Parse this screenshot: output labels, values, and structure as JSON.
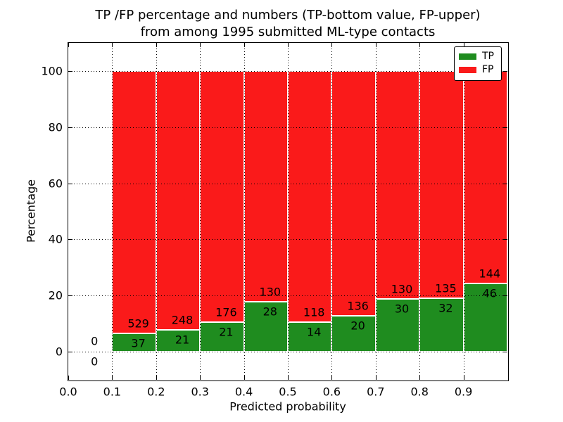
{
  "figure": {
    "title_line1": "TP /FP percentage and numbers (TP-bottom value, FP-upper)",
    "title_line2": "from among 1995 submitted ML-type contacts"
  },
  "axes": {
    "x_label": "Predicted probability",
    "y_label": "Percentage",
    "x_tick_values": [
      0.0,
      0.1,
      0.2,
      0.3,
      0.4,
      0.5,
      0.6,
      0.7,
      0.8,
      0.9
    ],
    "x_tick_labels": [
      "0.0",
      "0.1",
      "0.2",
      "0.3",
      "0.4",
      "0.5",
      "0.6",
      "0.7",
      "0.8",
      "0.9"
    ],
    "y_tick_values": [
      0,
      20,
      40,
      60,
      80,
      100
    ],
    "y_tick_labels": [
      "0",
      "20",
      "40",
      "60",
      "80",
      "100"
    ],
    "xlim": [
      0.0,
      1.0
    ],
    "ylim": [
      -10,
      110
    ],
    "grid": "dotted, both axes, drawn over bars"
  },
  "legend": {
    "position": "upper right",
    "items": [
      {
        "label": "TP",
        "color": "#1f8c1f"
      },
      {
        "label": "FP",
        "color": "#fa1a1a"
      }
    ]
  },
  "chart_data": {
    "type": "bar",
    "stacked": true,
    "normalized": "each bar's TP+FP stack totals 100%",
    "title": "TP /FP percentage and numbers (TP-bottom value, FP-upper) from among 1995 submitted ML-type contacts",
    "xlabel": "Predicted probability",
    "ylabel": "Percentage",
    "xlim": [
      0.0,
      1.0
    ],
    "ylim": [
      -10,
      110
    ],
    "total_contacts": 1995,
    "bin_width": 0.1,
    "bin_starts": [
      0.0,
      0.1,
      0.2,
      0.3,
      0.4,
      0.5,
      0.6,
      0.7,
      0.8,
      0.9
    ],
    "series": [
      {
        "name": "TP",
        "color": "#1f8c1f",
        "counts": [
          0,
          37,
          21,
          21,
          28,
          14,
          20,
          30,
          32,
          46
        ]
      },
      {
        "name": "FP",
        "color": "#fa1a1a",
        "counts": [
          0,
          529,
          248,
          176,
          130,
          118,
          136,
          130,
          135,
          144
        ]
      }
    ],
    "annotation_note": "FP count printed above TP segment top, TP count printed below it; empty first bin shows 0 and 0 around the zero line"
  }
}
